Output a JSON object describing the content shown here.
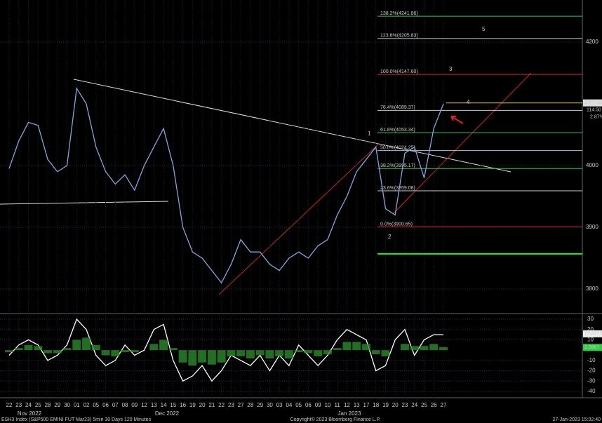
{
  "chart_data": [
    {
      "type": "line",
      "categories": [
        "22",
        "23",
        "24",
        "25",
        "28",
        "29",
        "30",
        "01",
        "02",
        "05",
        "06",
        "07",
        "08",
        "09",
        "12",
        "13",
        "14",
        "15",
        "16",
        "19",
        "20",
        "21",
        "22",
        "23",
        "27",
        "28",
        "29",
        "30",
        "03",
        "04",
        "05",
        "06",
        "09",
        "10",
        "11",
        "12",
        "13",
        "17",
        "18",
        "19",
        "20",
        "23",
        "24",
        "25",
        "26",
        "27"
      ],
      "month_labels": [
        "Nov 2022",
        "Dec 2022",
        "Jan 2023"
      ],
      "series": [
        {
          "color": "#7fa8e0",
          "values": [
            3995,
            4040,
            4070,
            4065,
            4010,
            3990,
            4000,
            4125,
            4100,
            4030,
            3990,
            3970,
            3985,
            3960,
            4000,
            4030,
            4060,
            4000,
            3900,
            3860,
            3850,
            3830,
            3810,
            3840,
            3880,
            3860,
            3860,
            3840,
            3830,
            3850,
            3860,
            3850,
            3870,
            3880,
            3920,
            3950,
            3990,
            4010,
            4030,
            3930,
            3920,
            4020,
            4030,
            3980,
            4060,
            4100
          ]
        }
      ],
      "ylim": [
        3762.5,
        4268.2
      ],
      "yticks": [
        3800,
        3900,
        4000,
        4200
      ],
      "grid": true,
      "levels": [
        {
          "label": "138.2%(4241.86)",
          "value": 4241.86,
          "color": "#2ecc40"
        },
        {
          "label": "123.6%(4205.83)",
          "value": 4205.83,
          "color": "#cccccc"
        },
        {
          "label": "100.0%(4147.60)",
          "value": 4147.6,
          "color": "#e02020"
        },
        {
          "label": "76.4%(4089.37)",
          "value": 4089.37,
          "color": "#cccccc"
        },
        {
          "label": "61.8%(4053.34)",
          "value": 4053.34,
          "color": "#2ecc40"
        },
        {
          "label": "50.0%(4024.25)",
          "value": 4024.25,
          "color": "#aac8e0"
        },
        {
          "label": "38.2%(3995.17)",
          "value": 3995.17,
          "color": "#2ecc40"
        },
        {
          "label": "23.6%(3959.08)",
          "value": 3959.08,
          "color": "#cccccc"
        },
        {
          "label": "0.0%(3900.65)",
          "value": 3900.65,
          "color": "#e02020"
        }
      ],
      "support_line": {
        "value": 3857,
        "color": "#22ee22"
      },
      "last_price": {
        "value": 4101.5,
        "label": "4101.50"
      },
      "change": "114.50",
      "change_pct": "2.87%",
      "annotations": [
        "1",
        "2",
        "3",
        "4",
        "5"
      ]
    },
    {
      "type": "line",
      "series": [
        {
          "color": "#ffffff",
          "values": [
            -5,
            5,
            10,
            5,
            -10,
            -5,
            5,
            30,
            20,
            -5,
            -15,
            -10,
            5,
            -5,
            0,
            20,
            25,
            -10,
            -30,
            -25,
            -15,
            -30,
            -20,
            -5,
            -10,
            -15,
            -5,
            -20,
            -5,
            -15,
            5,
            -5,
            -15,
            -5,
            10,
            20,
            15,
            10,
            -20,
            -15,
            10,
            20,
            -5,
            10,
            15,
            15
          ]
        },
        {
          "color": "#2a8a2a",
          "style": "bar",
          "values": [
            -2,
            2,
            5,
            4,
            -3,
            -3,
            2,
            10,
            12,
            5,
            -5,
            -6,
            -2,
            -2,
            0,
            6,
            10,
            2,
            -12,
            -15,
            -12,
            -14,
            -12,
            -6,
            -6,
            -8,
            -5,
            -8,
            -6,
            -8,
            -2,
            -3,
            -6,
            -4,
            2,
            8,
            8,
            6,
            -4,
            -6,
            0,
            6,
            4,
            4,
            6,
            3
          ]
        }
      ],
      "ylim": [
        -44.8,
        33.4
      ],
      "yticks": [
        30,
        20,
        10,
        -10,
        -20,
        -30,
        -40
      ],
      "last_values": [
        15.8315,
        2.5867
      ]
    }
  ],
  "footer": {
    "left": "ESH3 Index (S&P500 EMINI FUT  Mar23) 5min 30 Days 120 Minutes",
    "center": "Copyright© 2023 Bloomberg Finance L.P.",
    "right": "27-Jan-2023 15:02:40"
  }
}
